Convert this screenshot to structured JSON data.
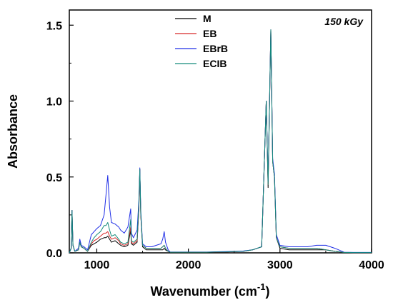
{
  "chart_data": {
    "type": "line",
    "annotation": "150 kGy",
    "xlabel": "Wavenumber (cm",
    "xlabel_sup": "-1",
    "xlabel_end": ")",
    "ylabel": "Absorbance",
    "xlim": [
      700,
      4000
    ],
    "ylim": [
      0,
      1.6
    ],
    "xticks": [
      1000,
      2000,
      3000,
      4000
    ],
    "xtick_labels": [
      "1000",
      "2000",
      "3000",
      "4000"
    ],
    "yticks": [
      0.0,
      0.5,
      1.0,
      1.5
    ],
    "ytick_labels": [
      "0.0",
      "0.5",
      "1.0",
      "1.5"
    ],
    "grid": false,
    "legend_position": "top-center",
    "x": [
      700,
      720,
      730,
      740,
      760,
      800,
      815,
      830,
      860,
      900,
      940,
      970,
      1000,
      1040,
      1080,
      1100,
      1120,
      1140,
      1160,
      1200,
      1240,
      1260,
      1300,
      1340,
      1370,
      1378,
      1400,
      1440,
      1460,
      1470,
      1480,
      1500,
      1540,
      1600,
      1650,
      1700,
      1720,
      1736,
      1750,
      1780,
      1800,
      1900,
      2000,
      2100,
      2200,
      2300,
      2400,
      2500,
      2600,
      2700,
      2800,
      2850,
      2870,
      2900,
      2920,
      2940,
      2960,
      3000,
      3100,
      3200,
      3300,
      3400,
      3500,
      3600,
      3700,
      3800,
      3900,
      4000
    ],
    "series": [
      {
        "name": "M",
        "color": "#000000",
        "values": [
          0.0,
          0.03,
          0.28,
          0.05,
          0.01,
          0.02,
          0.07,
          0.04,
          0.03,
          0.01,
          0.05,
          0.06,
          0.07,
          0.09,
          0.1,
          0.1,
          0.11,
          0.09,
          0.07,
          0.08,
          0.06,
          0.05,
          0.04,
          0.05,
          0.15,
          0.06,
          0.05,
          0.07,
          0.3,
          0.55,
          0.25,
          0.04,
          0.02,
          0.02,
          0.02,
          0.02,
          0.02,
          0.03,
          0.02,
          0.01,
          0.003,
          0.003,
          0.003,
          0.003,
          0.003,
          0.005,
          0.005,
          0.008,
          0.01,
          0.02,
          0.04,
          1.0,
          0.43,
          1.47,
          0.6,
          0.5,
          0.1,
          0.03,
          0.02,
          0.02,
          0.02,
          0.02,
          0.02,
          0.01,
          0.003,
          0.002,
          0.002,
          0.002
        ]
      },
      {
        "name": "EB",
        "color": "#d62728",
        "values": [
          0.0,
          0.03,
          0.28,
          0.05,
          0.01,
          0.02,
          0.07,
          0.04,
          0.03,
          0.01,
          0.06,
          0.08,
          0.09,
          0.11,
          0.13,
          0.13,
          0.14,
          0.11,
          0.09,
          0.1,
          0.08,
          0.06,
          0.05,
          0.06,
          0.17,
          0.07,
          0.06,
          0.08,
          0.3,
          0.55,
          0.25,
          0.05,
          0.03,
          0.03,
          0.03,
          0.03,
          0.04,
          0.05,
          0.03,
          0.01,
          0.004,
          0.004,
          0.004,
          0.004,
          0.004,
          0.006,
          0.006,
          0.009,
          0.01,
          0.02,
          0.04,
          1.0,
          0.45,
          1.47,
          0.6,
          0.5,
          0.1,
          0.04,
          0.03,
          0.03,
          0.03,
          0.03,
          0.02,
          0.01,
          0.003,
          0.002,
          0.002,
          0.002
        ]
      },
      {
        "name": "EBrB",
        "color": "#1f2ee6",
        "values": [
          0.0,
          0.03,
          0.28,
          0.05,
          0.01,
          0.03,
          0.09,
          0.05,
          0.04,
          0.02,
          0.12,
          0.14,
          0.16,
          0.18,
          0.25,
          0.38,
          0.51,
          0.3,
          0.2,
          0.19,
          0.17,
          0.15,
          0.13,
          0.17,
          0.29,
          0.13,
          0.1,
          0.15,
          0.35,
          0.56,
          0.28,
          0.06,
          0.04,
          0.04,
          0.05,
          0.06,
          0.09,
          0.14,
          0.07,
          0.02,
          0.006,
          0.005,
          0.005,
          0.005,
          0.005,
          0.007,
          0.008,
          0.01,
          0.012,
          0.02,
          0.04,
          1.0,
          0.47,
          1.47,
          0.62,
          0.52,
          0.12,
          0.05,
          0.04,
          0.04,
          0.04,
          0.05,
          0.05,
          0.03,
          0.004,
          0.003,
          0.003,
          0.003
        ]
      },
      {
        "name": "ECIB",
        "color": "#138a7a",
        "values": [
          0.0,
          0.03,
          0.28,
          0.05,
          0.01,
          0.02,
          0.07,
          0.04,
          0.03,
          0.01,
          0.07,
          0.1,
          0.12,
          0.14,
          0.18,
          0.18,
          0.2,
          0.15,
          0.11,
          0.12,
          0.09,
          0.07,
          0.06,
          0.07,
          0.22,
          0.08,
          0.07,
          0.09,
          0.32,
          0.55,
          0.26,
          0.05,
          0.03,
          0.03,
          0.03,
          0.03,
          0.04,
          0.05,
          0.03,
          0.01,
          0.004,
          0.004,
          0.004,
          0.004,
          0.004,
          0.006,
          0.006,
          0.009,
          0.01,
          0.02,
          0.04,
          1.0,
          0.45,
          1.47,
          0.6,
          0.5,
          0.1,
          0.04,
          0.03,
          0.03,
          0.03,
          0.03,
          0.02,
          0.01,
          0.003,
          0.002,
          0.002,
          0.002
        ]
      }
    ]
  }
}
